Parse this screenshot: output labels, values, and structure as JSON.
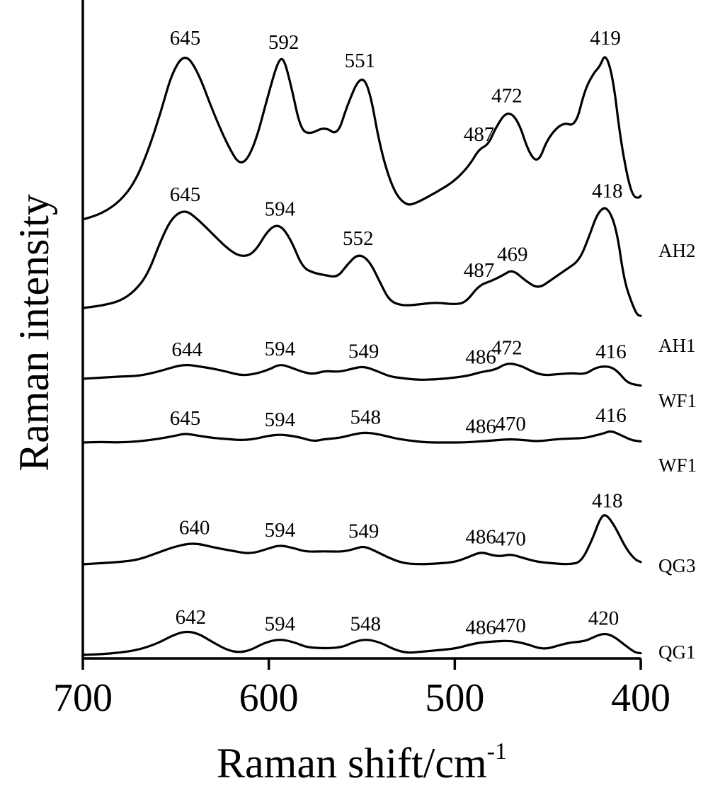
{
  "chart_data": {
    "type": "line",
    "title": "",
    "xlabel": "Raman shift/cm",
    "xlabel_superscript": "-1",
    "ylabel": "Raman intensity",
    "xlim": [
      700,
      400
    ],
    "x_reversed": true,
    "xticks": [
      "700",
      "600",
      "500",
      "400"
    ],
    "y_ticks_shown": false,
    "grid": false,
    "series": [
      {
        "name": "QG1",
        "points": [
          [
            700,
            0
          ],
          [
            690,
            0.6
          ],
          [
            680,
            2
          ],
          [
            670,
            4.5
          ],
          [
            660,
            10
          ],
          [
            652,
            17
          ],
          [
            645,
            21
          ],
          [
            638,
            19
          ],
          [
            630,
            11
          ],
          [
            622,
            4
          ],
          [
            616,
            2.2
          ],
          [
            610,
            4
          ],
          [
            602,
            11
          ],
          [
            594,
            14
          ],
          [
            586,
            11
          ],
          [
            580,
            7
          ],
          [
            575,
            6.2
          ],
          [
            568,
            5.8
          ],
          [
            560,
            7
          ],
          [
            555,
            11
          ],
          [
            548,
            14
          ],
          [
            540,
            11
          ],
          [
            533,
            5
          ],
          [
            526,
            1.8
          ],
          [
            520,
            2.5
          ],
          [
            510,
            4
          ],
          [
            500,
            5.5
          ],
          [
            492,
            9
          ],
          [
            486,
            11
          ],
          [
            478,
            12
          ],
          [
            470,
            12.5
          ],
          [
            462,
            10
          ],
          [
            455,
            6
          ],
          [
            450,
            5.5
          ],
          [
            445,
            8
          ],
          [
            438,
            11
          ],
          [
            430,
            12
          ],
          [
            425,
            16
          ],
          [
            420,
            19
          ],
          [
            415,
            17
          ],
          [
            408,
            8
          ],
          [
            403,
            2
          ],
          [
            400,
            1.5
          ]
        ],
        "labels": [
          {
            "text": "642",
            "x": 642
          },
          {
            "text": "594",
            "x": 594
          },
          {
            "text": "548",
            "x": 548
          },
          {
            "text": "486",
            "x": 486
          },
          {
            "text": "470",
            "x": 470
          },
          {
            "text": "420",
            "x": 420
          }
        ]
      },
      {
        "name": "QG3",
        "points": [
          [
            700,
            0
          ],
          [
            690,
            1
          ],
          [
            680,
            2
          ],
          [
            670,
            4
          ],
          [
            660,
            10
          ],
          [
            650,
            16
          ],
          [
            640,
            19
          ],
          [
            630,
            15
          ],
          [
            620,
            12
          ],
          [
            610,
            9
          ],
          [
            600,
            14
          ],
          [
            594,
            17
          ],
          [
            586,
            14
          ],
          [
            580,
            11
          ],
          [
            570,
            11.5
          ],
          [
            560,
            11
          ],
          [
            553,
            14
          ],
          [
            549,
            16
          ],
          [
            543,
            12
          ],
          [
            536,
            6
          ],
          [
            528,
            1
          ],
          [
            520,
            0
          ],
          [
            510,
            0.5
          ],
          [
            500,
            2
          ],
          [
            493,
            6
          ],
          [
            486,
            11
          ],
          [
            480,
            8
          ],
          [
            475,
            7
          ],
          [
            470,
            9
          ],
          [
            462,
            5
          ],
          [
            455,
            2
          ],
          [
            445,
            0.5
          ],
          [
            438,
            0
          ],
          [
            432,
            2
          ],
          [
            426,
            22
          ],
          [
            422,
            40
          ],
          [
            419,
            45
          ],
          [
            414,
            34
          ],
          [
            408,
            14
          ],
          [
            403,
            4
          ],
          [
            400,
            2
          ]
        ],
        "labels": [
          {
            "text": "640",
            "x": 640
          },
          {
            "text": "594",
            "x": 594
          },
          {
            "text": "549",
            "x": 549
          },
          {
            "text": "486",
            "x": 486
          },
          {
            "text": "470",
            "x": 470
          },
          {
            "text": "418",
            "x": 418
          }
        ]
      },
      {
        "name": "WF1",
        "points": [
          [
            700,
            0
          ],
          [
            690,
            0.5
          ],
          [
            680,
            0
          ],
          [
            670,
            1
          ],
          [
            660,
            3
          ],
          [
            650,
            6
          ],
          [
            645,
            8
          ],
          [
            638,
            6
          ],
          [
            630,
            4
          ],
          [
            622,
            3
          ],
          [
            615,
            2
          ],
          [
            608,
            3
          ],
          [
            600,
            6
          ],
          [
            594,
            7
          ],
          [
            588,
            6
          ],
          [
            582,
            4
          ],
          [
            576,
            1
          ],
          [
            570,
            3
          ],
          [
            562,
            4
          ],
          [
            555,
            7
          ],
          [
            548,
            9
          ],
          [
            540,
            7
          ],
          [
            533,
            4
          ],
          [
            526,
            2
          ],
          [
            515,
            0
          ],
          [
            505,
            0
          ],
          [
            495,
            0
          ],
          [
            486,
            1
          ],
          [
            478,
            2
          ],
          [
            470,
            3
          ],
          [
            462,
            2
          ],
          [
            455,
            1
          ],
          [
            445,
            3
          ],
          [
            437,
            3.5
          ],
          [
            430,
            4
          ],
          [
            425,
            6
          ],
          [
            420,
            8
          ],
          [
            416,
            10.5
          ],
          [
            410,
            6
          ],
          [
            405,
            2
          ],
          [
            400,
            1
          ]
        ],
        "labels": [
          {
            "text": "645",
            "x": 645
          },
          {
            "text": "594",
            "x": 594
          },
          {
            "text": "548",
            "x": 548
          },
          {
            "text": "486",
            "x": 486
          },
          {
            "text": "470",
            "x": 470
          },
          {
            "text": "416",
            "x": 416
          }
        ]
      },
      {
        "name": "WF1",
        "points": [
          [
            700,
            0
          ],
          [
            690,
            1
          ],
          [
            680,
            2
          ],
          [
            670,
            2.5
          ],
          [
            660,
            6
          ],
          [
            650,
            11
          ],
          [
            644,
            12.5
          ],
          [
            638,
            11
          ],
          [
            630,
            9
          ],
          [
            622,
            6
          ],
          [
            615,
            3
          ],
          [
            608,
            4
          ],
          [
            600,
            8
          ],
          [
            594,
            13
          ],
          [
            588,
            10
          ],
          [
            582,
            6
          ],
          [
            576,
            4
          ],
          [
            570,
            7
          ],
          [
            562,
            6
          ],
          [
            555,
            9
          ],
          [
            549,
            11
          ],
          [
            542,
            7
          ],
          [
            535,
            2
          ],
          [
            528,
            0.5
          ],
          [
            520,
            -1
          ],
          [
            510,
            -0.5
          ],
          [
            500,
            1
          ],
          [
            492,
            3
          ],
          [
            486,
            6
          ],
          [
            478,
            8
          ],
          [
            472,
            14
          ],
          [
            465,
            12
          ],
          [
            458,
            6
          ],
          [
            452,
            3
          ],
          [
            445,
            4
          ],
          [
            437,
            5
          ],
          [
            430,
            4
          ],
          [
            425,
            9
          ],
          [
            421,
            11
          ],
          [
            416,
            10.5
          ],
          [
            412,
            6
          ],
          [
            407,
            -4
          ],
          [
            400,
            -6
          ]
        ],
        "labels": [
          {
            "text": "644",
            "x": 644
          },
          {
            "text": "594",
            "x": 594
          },
          {
            "text": "549",
            "x": 549
          },
          {
            "text": "486",
            "x": 486
          },
          {
            "text": "472",
            "x": 472
          },
          {
            "text": "416",
            "x": 416
          }
        ]
      },
      {
        "name": "AH1",
        "points": [
          [
            700,
            0
          ],
          [
            690,
            2
          ],
          [
            680,
            6
          ],
          [
            672,
            15
          ],
          [
            665,
            30
          ],
          [
            658,
            60
          ],
          [
            652,
            80
          ],
          [
            645,
            87
          ],
          [
            638,
            78
          ],
          [
            630,
            65
          ],
          [
            622,
            52
          ],
          [
            615,
            45
          ],
          [
            608,
            48
          ],
          [
            600,
            70
          ],
          [
            594,
            74
          ],
          [
            588,
            60
          ],
          [
            582,
            36
          ],
          [
            576,
            31
          ],
          [
            570,
            29
          ],
          [
            563,
            27
          ],
          [
            558,
            38
          ],
          [
            552,
            48
          ],
          [
            546,
            42
          ],
          [
            540,
            22
          ],
          [
            535,
            6
          ],
          [
            528,
            2
          ],
          [
            520,
            3
          ],
          [
            510,
            5
          ],
          [
            500,
            3
          ],
          [
            494,
            5
          ],
          [
            487,
            20
          ],
          [
            480,
            24
          ],
          [
            474,
            29
          ],
          [
            469,
            34
          ],
          [
            462,
            24
          ],
          [
            455,
            17
          ],
          [
            448,
            25
          ],
          [
            440,
            34
          ],
          [
            433,
            42
          ],
          [
            428,
            62
          ],
          [
            423,
            85
          ],
          [
            418,
            90
          ],
          [
            413,
            70
          ],
          [
            409,
            25
          ],
          [
            405,
            5
          ],
          [
            402,
            -6
          ],
          [
            400,
            -7
          ]
        ],
        "labels": [
          {
            "text": "645",
            "x": 645
          },
          {
            "text": "594",
            "x": 594
          },
          {
            "text": "552",
            "x": 552
          },
          {
            "text": "487",
            "x": 487
          },
          {
            "text": "469",
            "x": 469
          },
          {
            "text": "418",
            "x": 418
          }
        ]
      },
      {
        "name": "AH2",
        "points": [
          [
            700,
            0
          ],
          [
            690,
            5
          ],
          [
            680,
            16
          ],
          [
            672,
            33
          ],
          [
            665,
            60
          ],
          [
            658,
            95
          ],
          [
            652,
            130
          ],
          [
            645,
            147
          ],
          [
            638,
            130
          ],
          [
            630,
            95
          ],
          [
            622,
            65
          ],
          [
            615,
            46
          ],
          [
            608,
            63
          ],
          [
            600,
            112
          ],
          [
            595,
            140
          ],
          [
            592,
            143
          ],
          [
            588,
            118
          ],
          [
            583,
            80
          ],
          [
            578,
            75
          ],
          [
            570,
            82
          ],
          [
            563,
            74
          ],
          [
            558,
            100
          ],
          [
            551,
            127
          ],
          [
            546,
            117
          ],
          [
            540,
            62
          ],
          [
            533,
            25
          ],
          [
            526,
            12
          ],
          [
            520,
            15
          ],
          [
            510,
            24
          ],
          [
            500,
            34
          ],
          [
            492,
            48
          ],
          [
            487,
            62
          ],
          [
            482,
            66
          ],
          [
            478,
            81
          ],
          [
            472,
            96
          ],
          [
            466,
            88
          ],
          [
            460,
            58
          ],
          [
            455,
            50
          ],
          [
            450,
            72
          ],
          [
            442,
            86
          ],
          [
            435,
            82
          ],
          [
            430,
            115
          ],
          [
            425,
            130
          ],
          [
            422,
            135
          ],
          [
            419,
            147
          ],
          [
            415,
            126
          ],
          [
            411,
            72
          ],
          [
            407,
            36
          ],
          [
            404,
            20
          ],
          [
            401,
            19
          ],
          [
            400,
            21
          ]
        ],
        "labels": [
          {
            "text": "645",
            "x": 645
          },
          {
            "text": "592",
            "x": 592
          },
          {
            "text": "551",
            "x": 551
          },
          {
            "text": "487",
            "x": 487
          },
          {
            "text": "472",
            "x": 472
          },
          {
            "text": "419",
            "x": 419
          }
        ]
      }
    ]
  }
}
